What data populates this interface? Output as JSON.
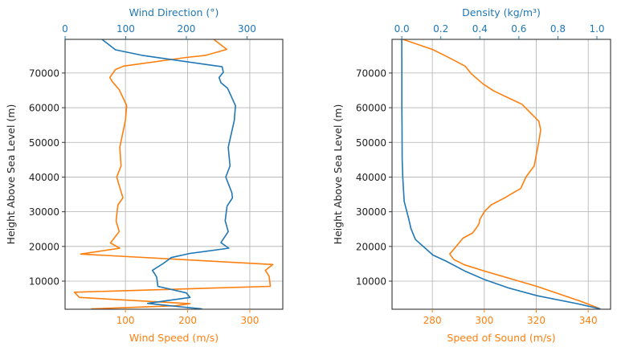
{
  "chart_data": [
    {
      "type": "line",
      "title": "",
      "ylabel": "Height Above Sea Level (m)",
      "ylim": [
        1900,
        79700
      ],
      "yticks": [
        10000,
        20000,
        30000,
        40000,
        50000,
        60000,
        70000
      ],
      "grid": true,
      "bottom_axis": {
        "label": "Wind Speed (m/s)",
        "color": "#ff7f0e",
        "lim": [
          3,
          353
        ],
        "ticks": [
          100,
          200,
          300
        ]
      },
      "top_axis": {
        "label": "Wind Direction (°)",
        "color": "#1f77b4",
        "lim": [
          0,
          359
        ],
        "ticks": [
          0,
          100,
          200,
          300
        ]
      },
      "series": [
        {
          "name": "Wind Speed",
          "axis": "bottom",
          "color": "#ff7f0e",
          "height": [
            79700,
            76800,
            75100,
            74500,
            72000,
            71000,
            68700,
            67500,
            65200,
            60600,
            56300,
            48600,
            43200,
            40000,
            34000,
            32000,
            27400,
            24300,
            21000,
            19500,
            17800,
            14800,
            13100,
            11400,
            8500,
            6800,
            5300,
            3500,
            2900,
            2000
          ],
          "values": [
            242,
            263,
            229,
            198,
            97,
            84,
            75,
            79,
            90,
            102,
            100,
            91,
            93,
            86,
            96,
            88,
            85,
            90,
            76,
            91,
            28,
            337,
            325,
            331,
            333,
            18,
            26,
            204,
            180,
            45
          ]
        },
        {
          "name": "Wind Direction",
          "axis": "top",
          "color": "#1f77b4",
          "height": [
            79700,
            76700,
            75100,
            71800,
            70200,
            68700,
            67200,
            65600,
            60600,
            56300,
            48600,
            43200,
            40000,
            35500,
            34000,
            31600,
            27400,
            24300,
            21100,
            19500,
            18000,
            16800,
            15100,
            13100,
            11200,
            8500,
            6600,
            5300,
            3600,
            2700,
            2000
          ],
          "values": [
            61,
            83,
            127,
            259,
            261,
            254,
            257,
            268,
            281,
            279,
            269,
            272,
            265,
            275,
            276,
            267,
            264,
            269,
            257,
            270,
            206,
            175,
            162,
            144,
            151,
            153,
            200,
            206,
            136,
            184,
            226
          ]
        }
      ]
    },
    {
      "type": "line",
      "title": "",
      "ylabel": "Height Above Sea Level (m)",
      "ylim": [
        1900,
        79700
      ],
      "yticks": [
        10000,
        20000,
        30000,
        40000,
        50000,
        60000,
        70000
      ],
      "grid": true,
      "bottom_axis": {
        "label": "Speed of Sound (m/s)",
        "color": "#ff7f0e",
        "lim": [
          264.5,
          348.6
        ],
        "ticks": [
          280,
          300,
          320,
          340
        ]
      },
      "top_axis": {
        "label": "Density (kg/m³)",
        "color": "#1f77b4",
        "lim": [
          -0.05,
          1.07
        ],
        "ticks": [
          0.0,
          0.2,
          0.4,
          0.6,
          0.8,
          1.0
        ],
        "tick_labels": [
          "0.0",
          "0.2",
          "0.4",
          "0.6",
          "0.8",
          "1.0"
        ]
      },
      "series": [
        {
          "name": "Speed of Sound",
          "axis": "bottom",
          "color": "#ff7f0e",
          "height": [
            79700,
            76800,
            74900,
            72000,
            69800,
            66800,
            64800,
            61000,
            56100,
            53600,
            50200,
            43200,
            40100,
            36700,
            34000,
            32000,
            30100,
            27800,
            26600,
            25900,
            23900,
            22400,
            20100,
            17800,
            16200,
            14700,
            12900,
            8500,
            4300,
            2100
          ],
          "values": [
            268.7,
            280,
            285.2,
            292.6,
            295,
            299.6,
            303.7,
            314.5,
            321,
            321.7,
            321,
            319.2,
            316.1,
            314,
            307.8,
            302.7,
            300.1,
            298.3,
            298,
            297.5,
            295.5,
            291.8,
            289.3,
            286.7,
            288.3,
            292.4,
            300.1,
            320.2,
            336.7,
            344.4
          ]
        },
        {
          "name": "Density",
          "axis": "top",
          "color": "#1f77b4",
          "height": [
            79700,
            70000,
            60000,
            55000,
            45000,
            39700,
            33000,
            27800,
            25100,
            22000,
            19700,
            17500,
            15800,
            13000,
            10400,
            8000,
            5800,
            3500,
            2000
          ],
          "values": [
            0.0,
            0.0001,
            0.0003,
            0.001,
            0.002,
            0.005,
            0.012,
            0.036,
            0.047,
            0.07,
            0.116,
            0.16,
            0.226,
            0.32,
            0.426,
            0.55,
            0.694,
            0.9,
            1.018
          ]
        }
      ]
    }
  ]
}
